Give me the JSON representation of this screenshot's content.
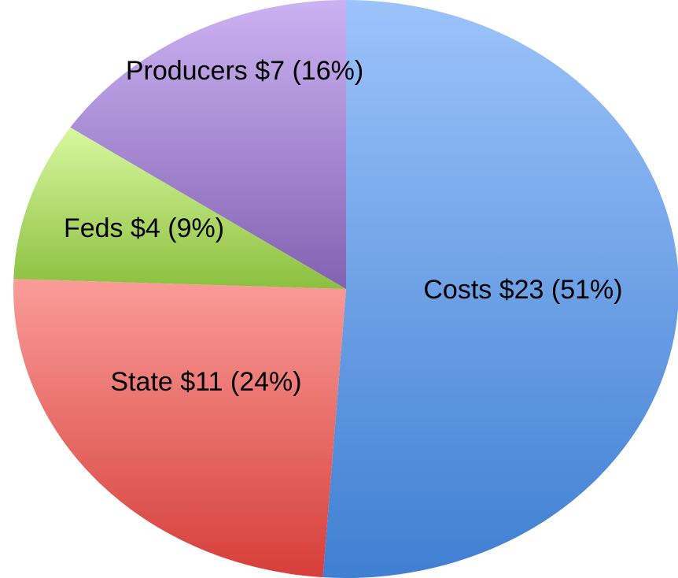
{
  "chart_data": {
    "type": "pie",
    "values": [
      23,
      11,
      4,
      7
    ],
    "value_labels": [
      "Costs $23 (51%)",
      "State $11 (24%)",
      "Feds $4 (9%)",
      "Producers $7 (16%)"
    ],
    "colors": [
      [
        "#9cc3fa",
        "#3f7fd2"
      ],
      [
        "#fa9c98",
        "#d63e3a"
      ],
      [
        "#d8f8a0",
        "#8cbf3f"
      ],
      [
        "#cbb2f2",
        "#8262b2"
      ]
    ]
  }
}
